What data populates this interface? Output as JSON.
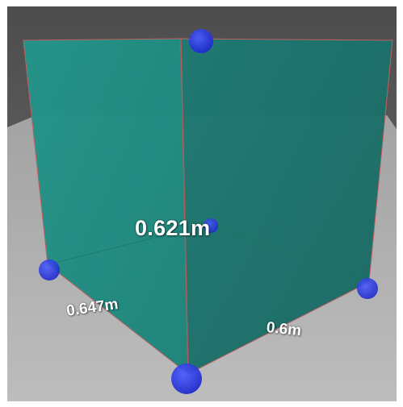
{
  "colors": {
    "background_top": "#5a5a5a",
    "background_mid": "#6d6d6d",
    "floor": "#b9b9b9",
    "floor_far": "#a6a6a6",
    "left_face": "#1f8b80",
    "right_face": "#1c6f6a",
    "edge": "#b45a5a",
    "handle": "#1f2ee0"
  },
  "measurements": {
    "height": "0.621m",
    "depth": "0.647m",
    "width": "0.6m"
  },
  "icons": {
    "handle": "measure-handle-icon"
  }
}
